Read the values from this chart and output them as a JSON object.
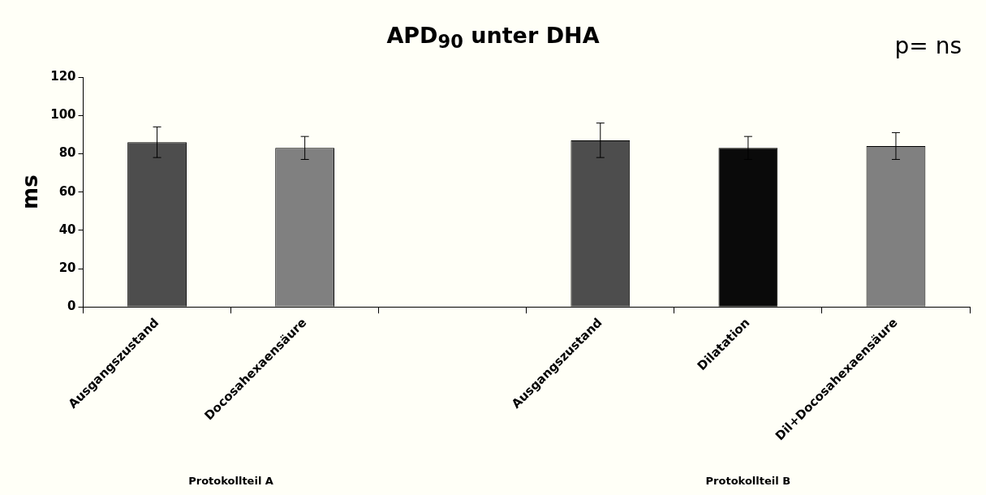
{
  "chart_data": {
    "type": "bar",
    "title": "APD$_{90}$ unter DHA",
    "ylabel": "ms",
    "categories": [
      "Ausgangszustand",
      "Docosahexaensäure",
      null,
      "Ausgangszustand",
      "Dilatation",
      "Dil+Docosahexaensäure"
    ],
    "values": [
      86,
      83,
      null,
      87,
      83,
      84
    ],
    "errors": [
      8,
      6,
      null,
      9,
      6,
      7
    ],
    "colors": [
      "#4d4d4d",
      "#808080",
      "#808080",
      "#4d4d4d",
      "#0a0a0a",
      "#808080"
    ],
    "ylim": [
      0,
      120
    ],
    "yticks": [
      0,
      20,
      40,
      60,
      80,
      100,
      120
    ],
    "grid": false,
    "legend": false,
    "annotations": [
      "p= ns",
      "Protokollteil A",
      "Protokollteil B"
    ]
  }
}
